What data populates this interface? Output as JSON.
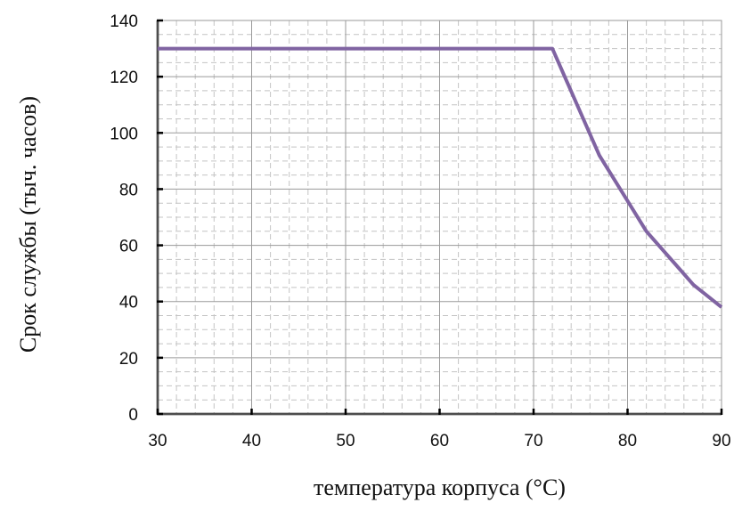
{
  "chart_data": {
    "type": "line",
    "title": "",
    "xlabel": "температура корпуса (°C)",
    "ylabel": "Срок службы (тыч. часов)",
    "xlim": [
      30,
      90
    ],
    "ylim": [
      0,
      140
    ],
    "x_ticks": [
      "30",
      "40",
      "50",
      "60",
      "70",
      "80",
      "90"
    ],
    "y_ticks": [
      "0",
      "20",
      "40",
      "60",
      "80",
      "100",
      "120",
      "140"
    ],
    "grid": true,
    "legend": "none",
    "series": [
      {
        "color": "#8064a2",
        "x": [
          30,
          72,
          77,
          82,
          87,
          90
        ],
        "y": [
          130,
          130,
          92,
          65,
          46,
          38
        ]
      }
    ]
  }
}
